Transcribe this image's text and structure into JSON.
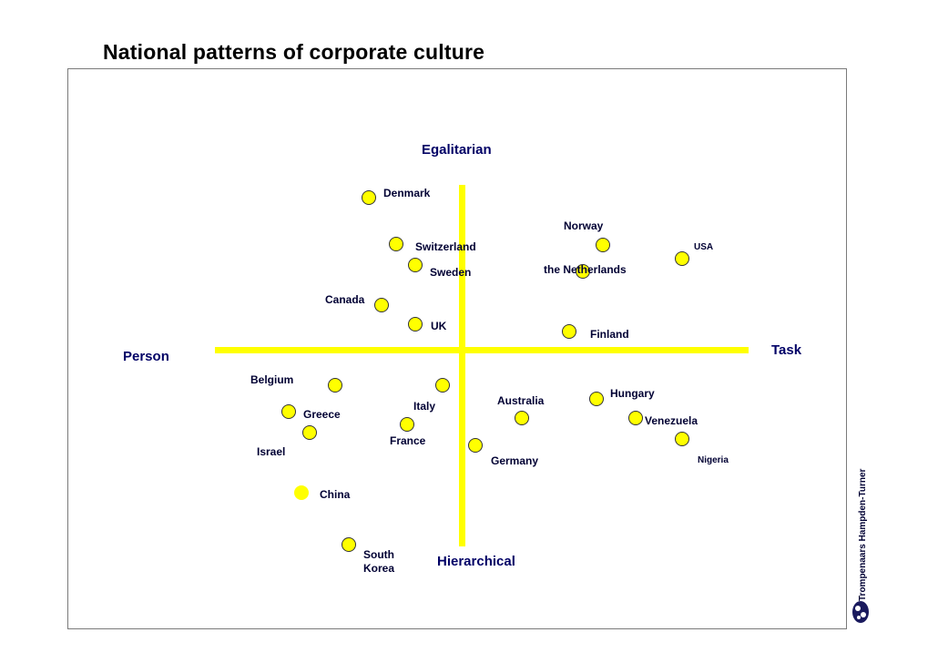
{
  "title": "National patterns of corporate culture",
  "poles": {
    "top": "Egalitarian",
    "bottom": "Hierarchical",
    "left": "Person",
    "right": "Task"
  },
  "countries": [
    {
      "name": "Denmark"
    },
    {
      "name": "Norway"
    },
    {
      "name": "Switzerland"
    },
    {
      "name": "USA"
    },
    {
      "name": "Sweden"
    },
    {
      "name": "the Netherlands"
    },
    {
      "name": "Canada"
    },
    {
      "name": "UK"
    },
    {
      "name": "Finland"
    },
    {
      "name": "Belgium"
    },
    {
      "name": "Hungary"
    },
    {
      "name": "Italy"
    },
    {
      "name": "Australia"
    },
    {
      "name": "Greece"
    },
    {
      "name": "Venezuela"
    },
    {
      "name": "France"
    },
    {
      "name": "Israel"
    },
    {
      "name": "Germany"
    },
    {
      "name": "Nigeria"
    },
    {
      "name": "China"
    },
    {
      "name": "South Korea"
    }
  ],
  "credit": "Trompenaars Hampden-Turner",
  "colors": {
    "accent": "#ffff00",
    "label": "#000066"
  }
}
